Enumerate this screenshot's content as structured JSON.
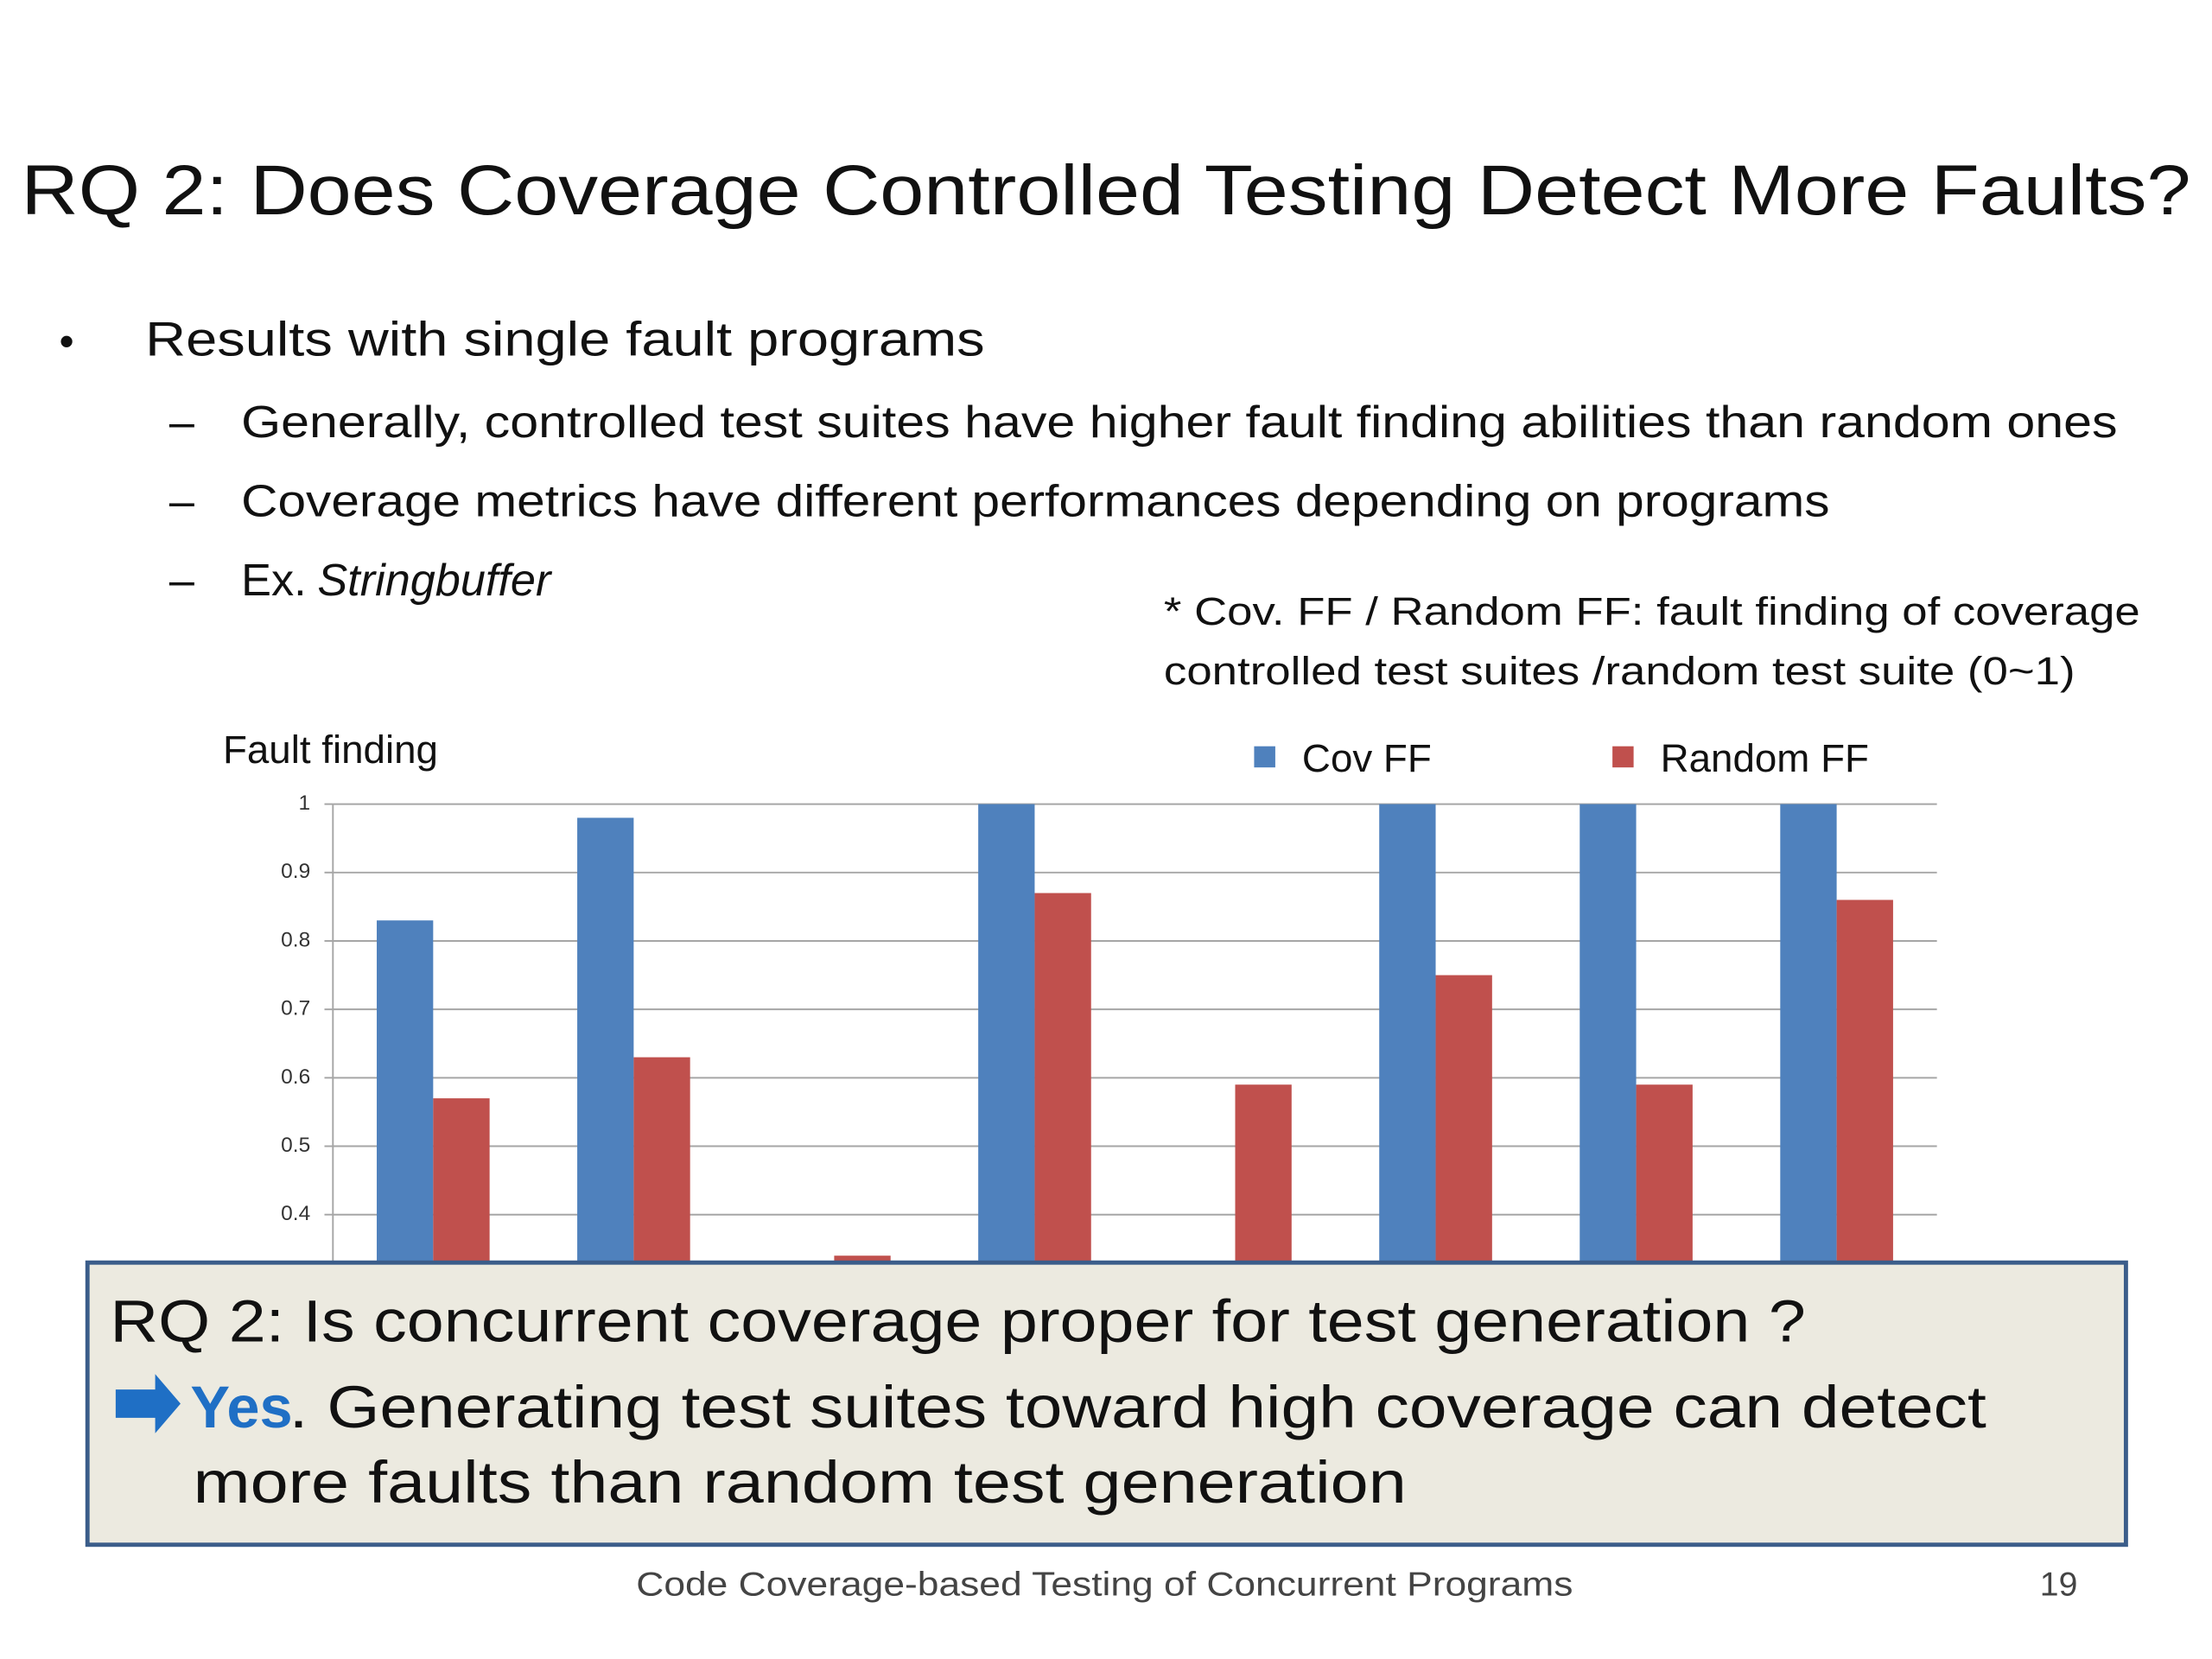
{
  "title": "RQ 2: Does Coverage Controlled Testing Detect More Faults?",
  "bullet": "Results with single fault programs",
  "sub_bullets": [
    "Generally, controlled test suites have higher fault finding abilities than random ones",
    "Coverage metrics have different performances depending on programs"
  ],
  "example": {
    "label": "Ex.",
    "program": "Stringbuffer"
  },
  "note": [
    "* Cov. FF / Random FF:    fault finding of coverage",
    "controlled test suites /random test suite (0~1)"
  ],
  "chart_data": {
    "type": "bar",
    "y_label": "Fault finding",
    "categories": [
      null,
      null,
      null,
      null,
      null,
      null,
      null,
      null
    ],
    "series": [
      {
        "name": "Cov FF",
        "color": "#4f81bd",
        "values": [
          0.83,
          0.98,
          null,
          1,
          null,
          1,
          1,
          1
        ]
      },
      {
        "name": "Random FF",
        "color": "#c0504d",
        "values": [
          0.57,
          0.63,
          0.34,
          0.87,
          0.59,
          0.75,
          0.59,
          0.86
        ]
      }
    ],
    "ylim": [
      0,
      1
    ],
    "yticks": [
      0.4,
      0.5,
      0.6,
      0.7,
      0.8,
      0.9,
      1
    ],
    "grid": true
  },
  "callout": {
    "question": "RQ 2: Is concurrent coverage proper for test generation ?",
    "answer": "Yes",
    "answer_lines": [
      ".  Generating test suites toward high coverage can detect",
      "more faults than random test generation"
    ]
  },
  "footer": {
    "text": "Code Coverage-based Testing of Concurrent Programs",
    "page": "19"
  }
}
